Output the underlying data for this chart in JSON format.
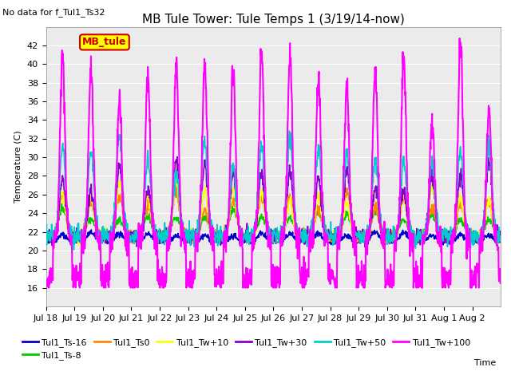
{
  "title": "MB Tule Tower: Tule Temps 1 (3/19/14-now)",
  "no_data_text": "No data for f_Tul1_Ts32",
  "ylabel": "Temperature (C)",
  "ylim": [
    14,
    44
  ],
  "yticks": [
    16,
    18,
    20,
    22,
    24,
    26,
    28,
    30,
    32,
    34,
    36,
    38,
    40,
    42
  ],
  "legend_box_label": "MB_tule",
  "legend_box_color": "#ffff00",
  "legend_box_border": "#cc0000",
  "series": [
    {
      "label": "Tul1_Ts-16",
      "color": "#0000cc",
      "lw": 1.2
    },
    {
      "label": "Tul1_Ts-8",
      "color": "#00cc00",
      "lw": 1.2
    },
    {
      "label": "Tul1_Ts0",
      "color": "#ff8800",
      "lw": 1.2
    },
    {
      "label": "Tul1_Tw+10",
      "color": "#ffff00",
      "lw": 1.2
    },
    {
      "label": "Tul1_Tw+30",
      "color": "#8800cc",
      "lw": 1.2
    },
    {
      "label": "Tul1_Tw+50",
      "color": "#00cccc",
      "lw": 1.2
    },
    {
      "label": "Tul1_Tw+100",
      "color": "#ff00ff",
      "lw": 1.5
    }
  ],
  "background_color": "#ffffff",
  "plot_bg_color": "#ebebeb",
  "grid_color": "#ffffff",
  "title_fontsize": 11,
  "axis_fontsize": 8,
  "legend_fontsize": 8
}
